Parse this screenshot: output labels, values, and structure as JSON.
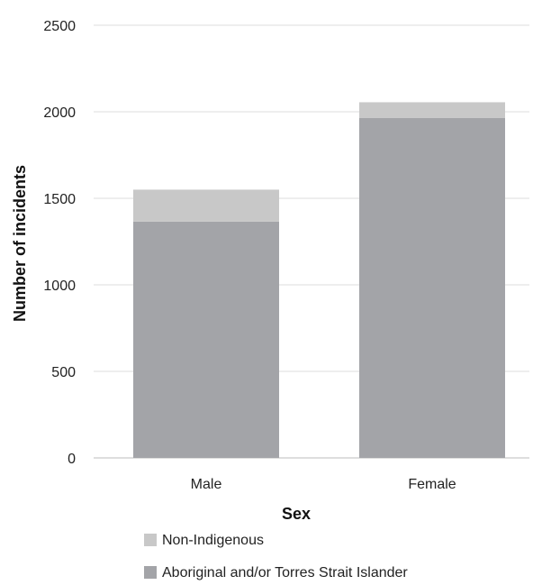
{
  "chart_data": {
    "type": "bar",
    "stacked": true,
    "categories": [
      "Male",
      "Female"
    ],
    "series": [
      {
        "name": "Aboriginal and/or Torres Strait Islander",
        "values": [
          1365,
          1965
        ],
        "color": "#a3a4a8"
      },
      {
        "name": "Non-Indigenous",
        "values": [
          185,
          90
        ],
        "color": "#c8c8c8"
      }
    ],
    "xlabel": "Sex",
    "ylabel": "Number of incidents",
    "ylim": [
      0,
      2500
    ],
    "yticks": [
      0,
      500,
      1000,
      1500,
      2000,
      2500
    ],
    "grid": true,
    "legend": {
      "placement": "bottom",
      "items": [
        "Non-Indigenous",
        "Aboriginal and/or Torres Strait Islander"
      ]
    }
  }
}
